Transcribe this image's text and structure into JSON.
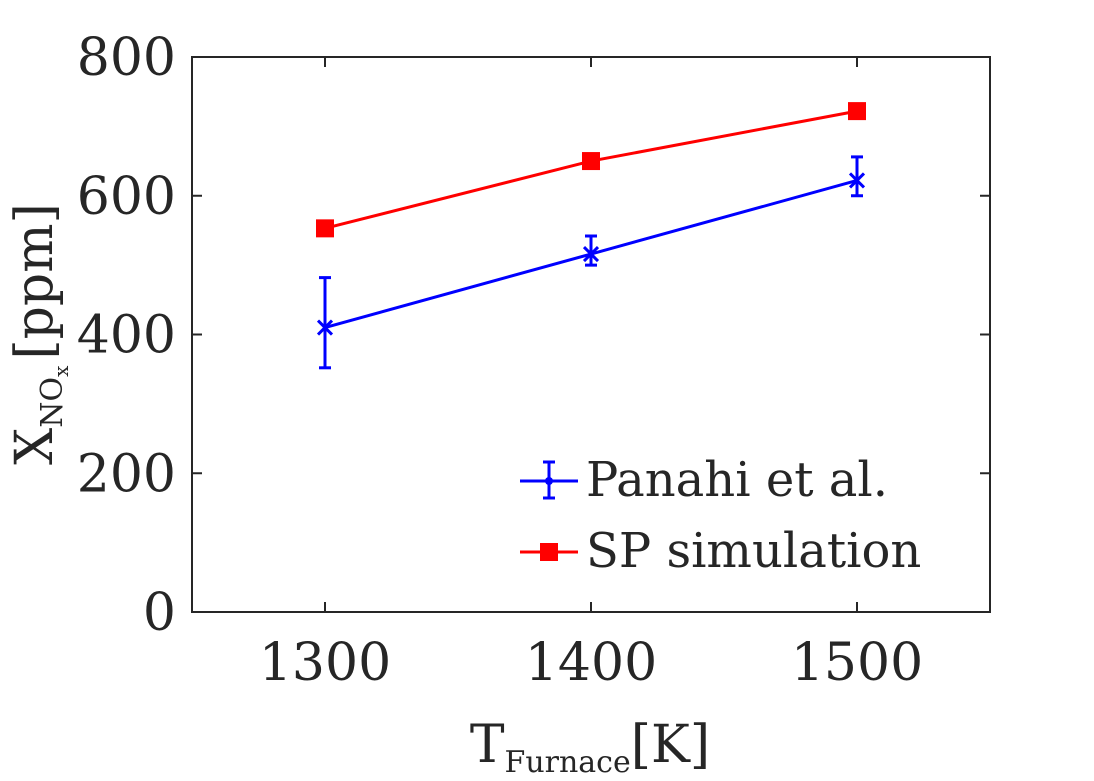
{
  "chart_data": {
    "type": "line",
    "title": "",
    "xlabel": {
      "main": "T",
      "sub": "Furnace",
      "unit": "[K]"
    },
    "ylabel": {
      "main": "X",
      "sub": "NO",
      "subsub": "x",
      "unit": "[ppm]"
    },
    "xlim": [
      1250,
      1550
    ],
    "ylim": [
      0,
      800
    ],
    "x_ticks": [
      1300,
      1400,
      1500
    ],
    "y_ticks": [
      0,
      200,
      400,
      600,
      800
    ],
    "x_tick_labels": [
      "1300",
      "1400",
      "1500"
    ],
    "y_tick_labels": [
      "0",
      "200",
      "400",
      "600",
      "800"
    ],
    "grid": false,
    "legend_position": "bottom-right",
    "series": [
      {
        "name": "Panahi et al.",
        "color": "#0000ff",
        "marker": "x",
        "x": [
          1300,
          1400,
          1500
        ],
        "values": [
          410,
          516,
          622
        ],
        "error_low": [
          352,
          500,
          600
        ],
        "error_high": [
          482,
          542,
          656
        ]
      },
      {
        "name": "SP simulation",
        "color": "#ff0000",
        "marker": "square",
        "x": [
          1300,
          1400,
          1500
        ],
        "values": [
          553,
          650,
          722
        ]
      }
    ]
  }
}
